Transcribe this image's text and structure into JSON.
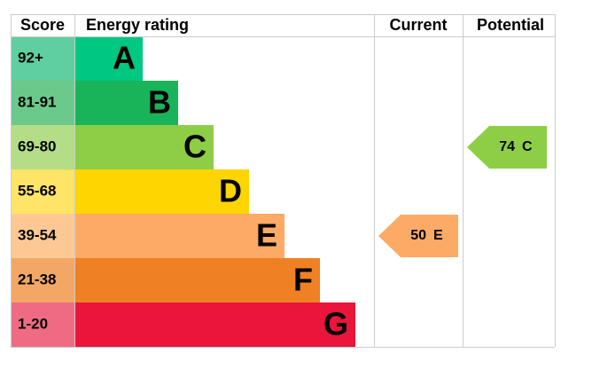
{
  "header": {
    "score": "Score",
    "rating": "Energy rating",
    "current": "Current",
    "potential": "Potential"
  },
  "bands": [
    {
      "score": "92+",
      "letter": "A",
      "color": "#00c781",
      "score_color": "#5fcf9f"
    },
    {
      "score": "81-91",
      "letter": "B",
      "color": "#19b459",
      "score_color": "#6cc98c"
    },
    {
      "score": "69-80",
      "letter": "C",
      "color": "#8dce46",
      "score_color": "#b4dd87"
    },
    {
      "score": "55-68",
      "letter": "D",
      "color": "#ffd500",
      "score_color": "#ffe466"
    },
    {
      "score": "39-54",
      "letter": "E",
      "color": "#fcaa65",
      "score_color": "#fdc894"
    },
    {
      "score": "21-38",
      "letter": "F",
      "color": "#ef8023",
      "score_color": "#f3a766"
    },
    {
      "score": "1-20",
      "letter": "G",
      "color": "#e9153b",
      "score_color": "#ef6b84"
    }
  ],
  "current": {
    "score": 50,
    "rating": "E"
  },
  "potential": {
    "score": 74,
    "rating": "C"
  }
}
